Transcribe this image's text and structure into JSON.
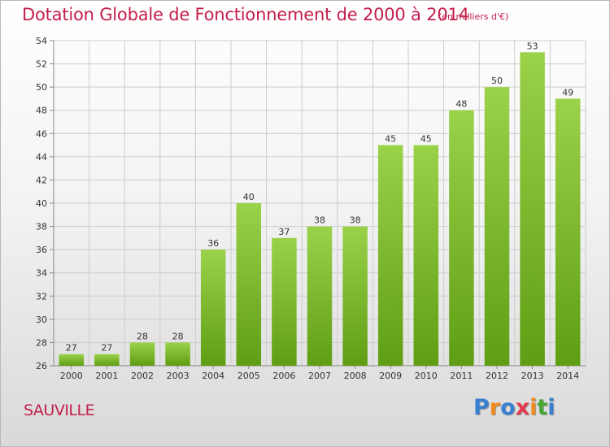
{
  "header": {
    "title": "Dotation Globale de Fonctionnement de 2000 à 2014",
    "unit": "(en milliers d'€)"
  },
  "footer": {
    "commune": "SAUVILLE",
    "logo_letters": [
      "P",
      "r",
      "o",
      "x",
      "i",
      "t",
      "i"
    ],
    "logo_colors": [
      "#3a7fd0",
      "#f08a1c",
      "#3a7fd0",
      "#e23a4c",
      "#f08a1c",
      "#49a836",
      "#3a7fd0"
    ]
  },
  "chart_data": {
    "type": "bar",
    "title": "Dotation Globale de Fonctionnement de 2000 à 2014",
    "subtitle": "(en milliers d'€)",
    "xlabel": "",
    "ylabel": "",
    "categories": [
      "2000",
      "2001",
      "2002",
      "2003",
      "2004",
      "2005",
      "2006",
      "2007",
      "2008",
      "2009",
      "2010",
      "2011",
      "2012",
      "2013",
      "2014"
    ],
    "values": [
      27,
      27,
      28,
      28,
      36,
      40,
      37,
      38,
      38,
      45,
      45,
      48,
      50,
      53,
      49
    ],
    "ylim": [
      26,
      54
    ],
    "yticks": [
      26,
      28,
      30,
      32,
      34,
      36,
      38,
      40,
      42,
      44,
      46,
      48,
      50,
      52,
      54
    ],
    "grid": true,
    "bar_color_top": "#9ad24a",
    "bar_color_bottom": "#5f9e14",
    "grid_color": "#cccccc"
  }
}
